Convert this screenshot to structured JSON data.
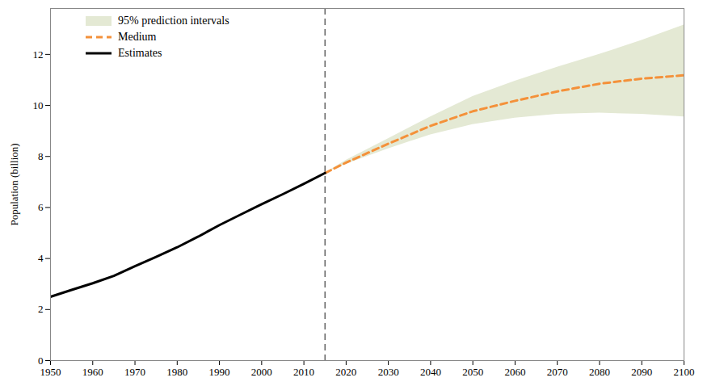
{
  "chart_data": {
    "type": "line",
    "y_label": "Population (billion)",
    "xlim": [
      1950,
      2100
    ],
    "xticks": [
      1950,
      1960,
      1970,
      1980,
      1990,
      2000,
      2010,
      2020,
      2030,
      2040,
      2050,
      2060,
      2070,
      2080,
      2090,
      2100
    ],
    "ylim": [
      0,
      13.8
    ],
    "yticks": [
      0,
      2,
      4,
      6,
      8,
      10,
      12
    ],
    "grid": false,
    "legend": "top-left",
    "reference_line": {
      "x": 2015,
      "line_style": "dashed"
    },
    "series": [
      {
        "name": "95% prediction intervals",
        "type": "area",
        "color": "#e4e9d4",
        "x": [
          2015,
          2020,
          2030,
          2040,
          2050,
          2060,
          2070,
          2080,
          2090,
          2100
        ],
        "lower": [
          7.35,
          7.7,
          8.3,
          8.85,
          9.25,
          9.5,
          9.65,
          9.7,
          9.65,
          9.55
        ],
        "upper": [
          7.35,
          7.85,
          8.7,
          9.55,
          10.35,
          10.95,
          11.5,
          12.0,
          12.55,
          13.15
        ]
      },
      {
        "name": "Medium",
        "type": "line",
        "color": "#f4913a",
        "line_style": "dashed",
        "x": [
          2015,
          2020,
          2030,
          2040,
          2050,
          2060,
          2070,
          2080,
          2090,
          2100
        ],
        "values": [
          7.35,
          7.76,
          8.5,
          9.2,
          9.77,
          10.18,
          10.55,
          10.85,
          11.05,
          11.18
        ]
      },
      {
        "name": "Estimates",
        "type": "line",
        "color": "#000000",
        "line_style": "solid",
        "x": [
          1950,
          1955,
          1960,
          1965,
          1970,
          1975,
          1980,
          1985,
          1990,
          1995,
          2000,
          2005,
          2010,
          2015
        ],
        "values": [
          2.5,
          2.77,
          3.03,
          3.32,
          3.7,
          4.06,
          4.44,
          4.86,
          5.31,
          5.72,
          6.13,
          6.52,
          6.93,
          7.35
        ]
      }
    ]
  }
}
